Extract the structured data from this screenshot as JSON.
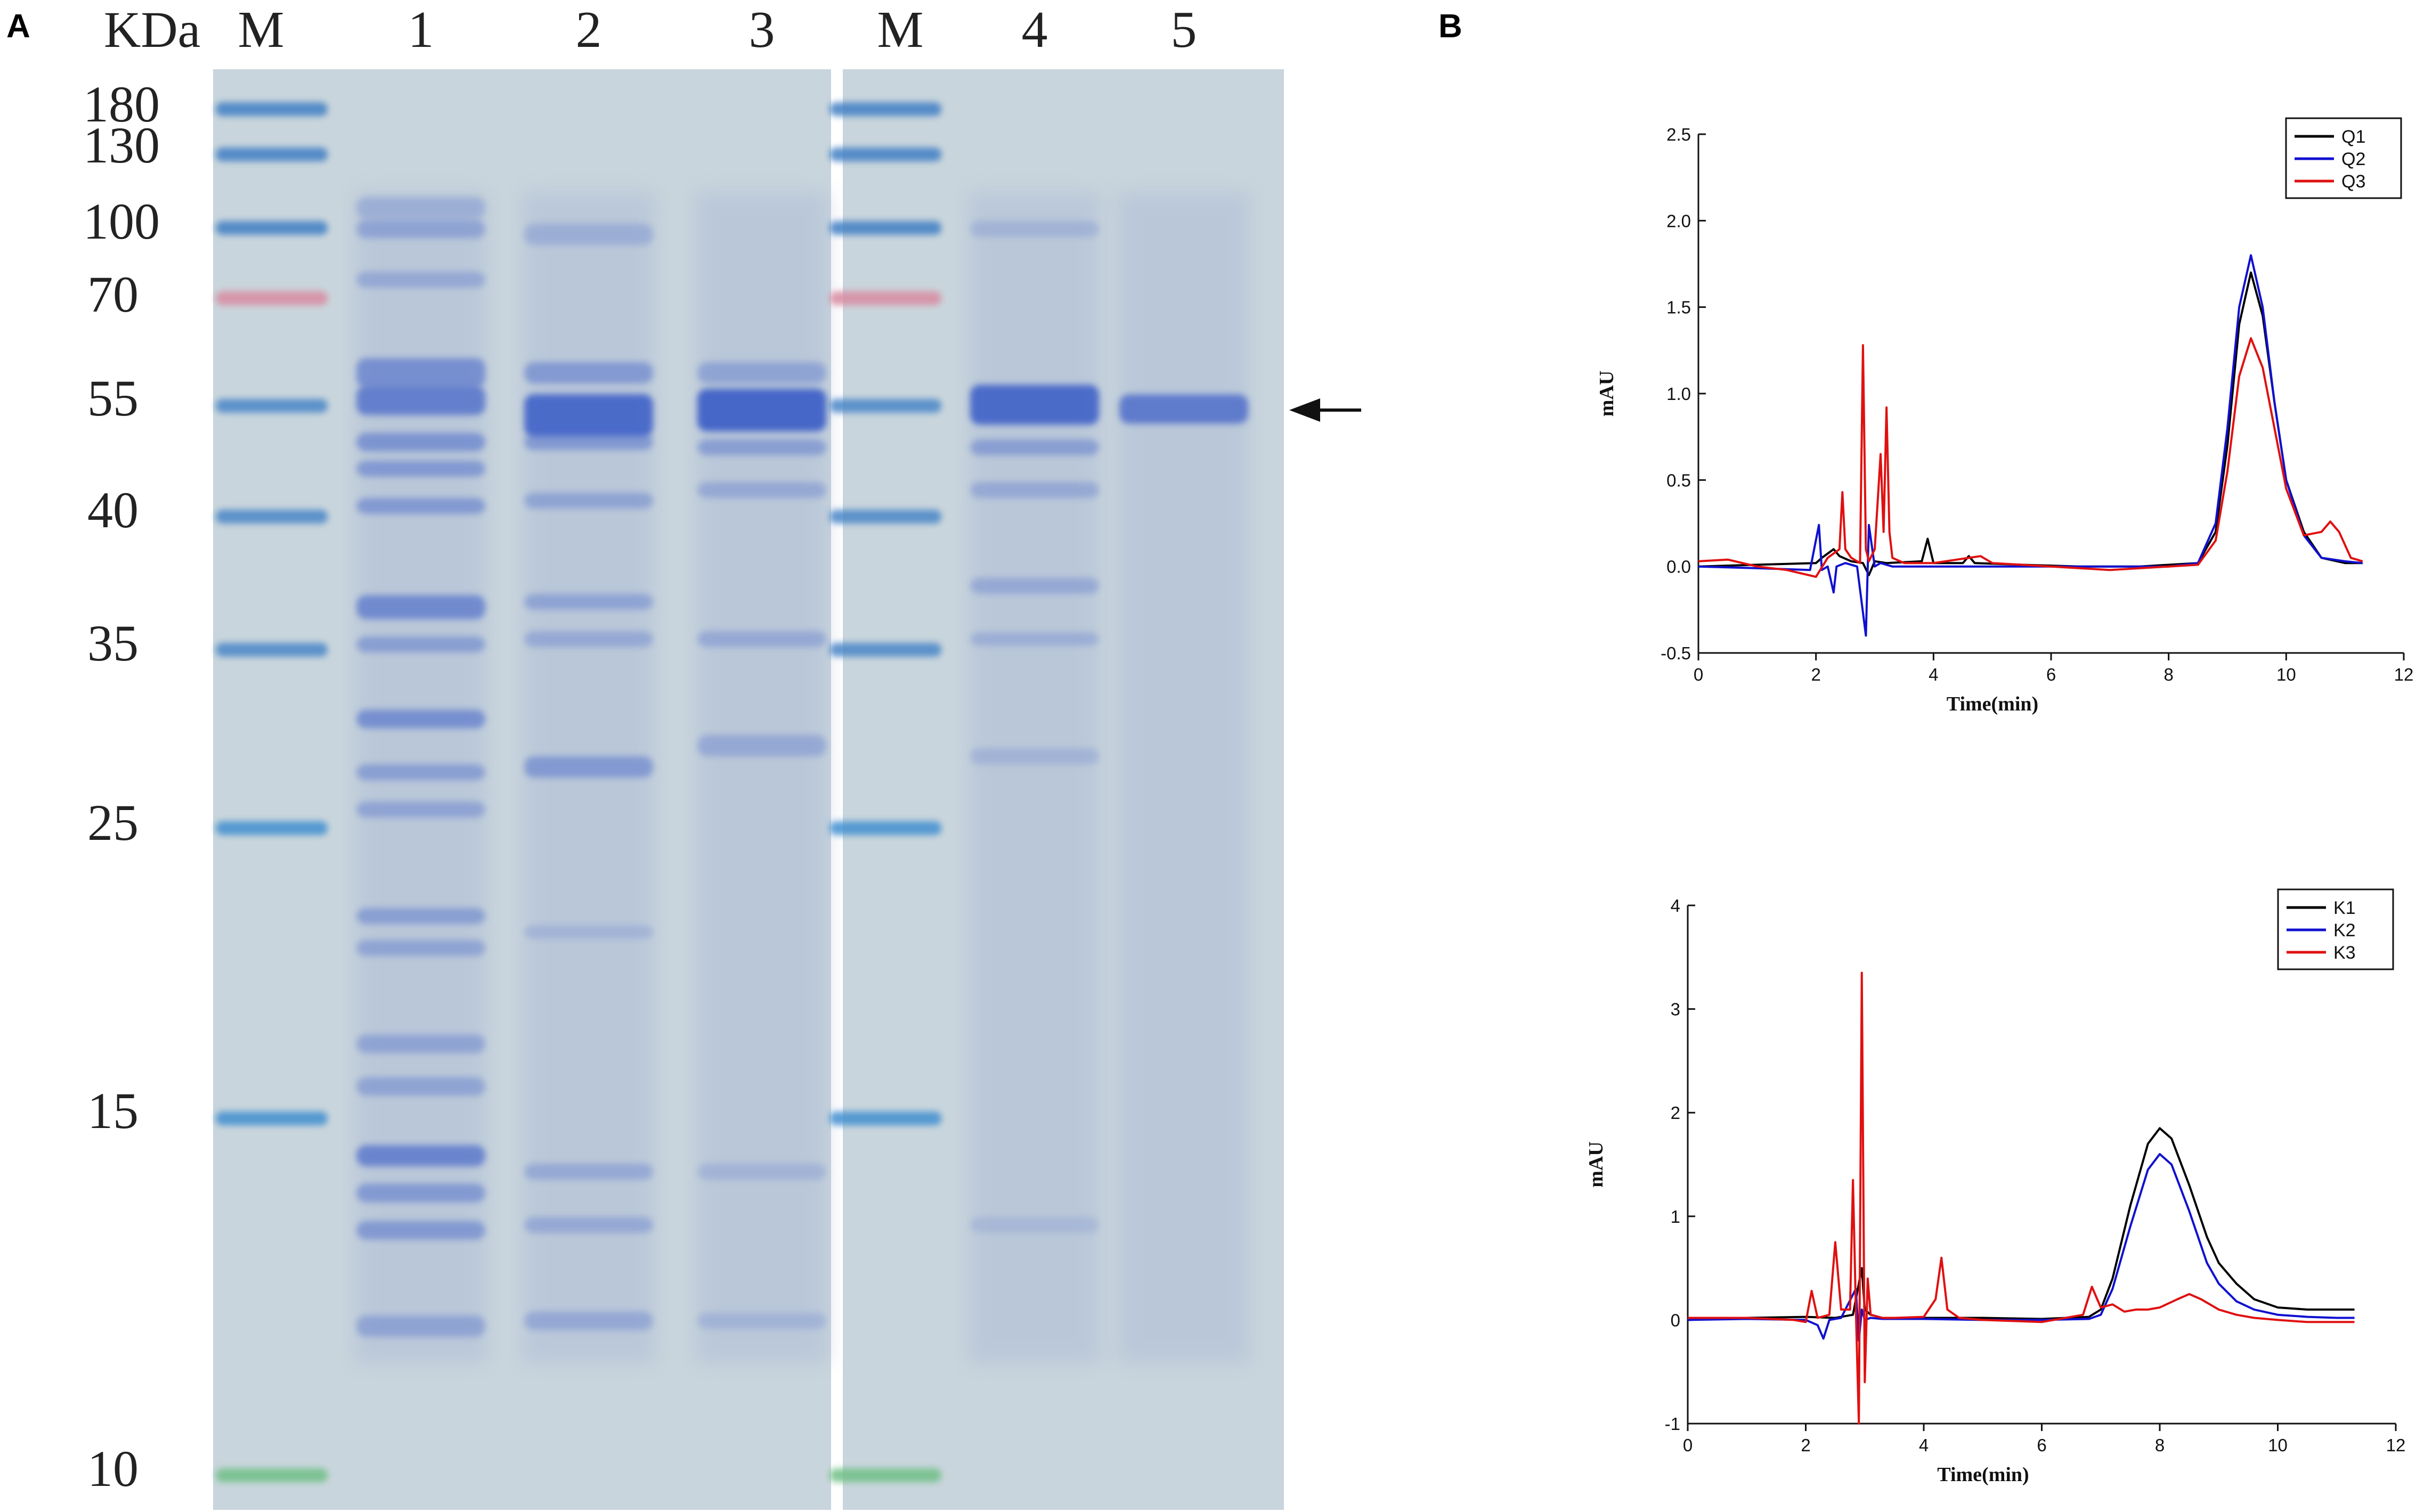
{
  "panel_a": {
    "letter": "A",
    "unit_label": "KDa",
    "lane_labels": [
      "M",
      "1",
      "2",
      "3",
      "M",
      "4",
      "5"
    ],
    "markers": [
      "180",
      "130",
      "100",
      "70",
      "55",
      "40",
      "35",
      "25",
      "15",
      "10"
    ],
    "marker_colors": [
      "#3f7fc4",
      "#3f7fc4",
      "#3f7fc4",
      "#d98aa0",
      "#4a86c8",
      "#4a86c8",
      "#4a86c8",
      "#3f8fd0",
      "#3f8fd0",
      "#6fbf86"
    ],
    "gel_background": "#c9d5dc",
    "band_color": "#3f62c8",
    "arrow_icon": "left-arrow-icon"
  },
  "panel_b": {
    "letter": "B"
  },
  "chart_data": [
    {
      "type": "line",
      "title": "",
      "xlabel": "Time(min)",
      "ylabel": "mAU",
      "xlim": [
        0,
        12
      ],
      "ylim": [
        -0.5,
        2.5
      ],
      "xticks": [
        "0",
        "2",
        "4",
        "6",
        "8",
        "10",
        "12"
      ],
      "yticks": [
        "-0.5",
        "0.0",
        "0.5",
        "1.0",
        "1.5",
        "2.0",
        "2.5"
      ],
      "legend_position": "top-right",
      "series": [
        {
          "name": "Q1",
          "color": "#000000",
          "x": [
            0,
            1.0,
            2.0,
            2.1,
            2.3,
            2.4,
            2.6,
            2.8,
            2.9,
            3.0,
            3.2,
            3.8,
            3.9,
            4.0,
            4.5,
            4.6,
            4.7,
            5.5,
            6.5,
            7.5,
            8.5,
            8.8,
            9.0,
            9.2,
            9.4,
            9.6,
            9.8,
            10.0,
            10.3,
            10.6,
            11.0,
            11.3
          ],
          "y": [
            0.0,
            0.01,
            0.02,
            0.05,
            0.1,
            0.06,
            0.03,
            0.02,
            -0.05,
            0.03,
            0.02,
            0.03,
            0.16,
            0.02,
            0.02,
            0.06,
            0.02,
            0.01,
            0.0,
            0.0,
            0.02,
            0.2,
            0.7,
            1.4,
            1.7,
            1.45,
            0.95,
            0.5,
            0.2,
            0.05,
            0.02,
            0.02
          ]
        },
        {
          "name": "Q2",
          "color": "#1010d0",
          "x": [
            0,
            1.0,
            1.9,
            2.05,
            2.1,
            2.2,
            2.3,
            2.35,
            2.5,
            2.7,
            2.85,
            2.9,
            3.0,
            3.1,
            3.3,
            4.0,
            5.0,
            6.0,
            7.0,
            8.0,
            8.5,
            8.8,
            9.0,
            9.2,
            9.4,
            9.6,
            9.8,
            10.0,
            10.3,
            10.6,
            11.0,
            11.3
          ],
          "y": [
            0.0,
            -0.01,
            -0.02,
            0.24,
            -0.02,
            0.0,
            -0.15,
            0.0,
            0.02,
            0.0,
            -0.4,
            0.24,
            0.0,
            0.02,
            0.0,
            0.0,
            0.0,
            0.0,
            0.0,
            0.0,
            0.02,
            0.25,
            0.8,
            1.5,
            1.8,
            1.5,
            0.95,
            0.5,
            0.18,
            0.05,
            0.03,
            0.02
          ]
        },
        {
          "name": "Q3",
          "color": "#e01010",
          "x": [
            0,
            0.5,
            1.0,
            1.5,
            2.0,
            2.2,
            2.4,
            2.45,
            2.5,
            2.6,
            2.75,
            2.8,
            2.85,
            2.9,
            3.0,
            3.1,
            3.15,
            3.2,
            3.25,
            3.3,
            3.5,
            4.0,
            4.8,
            5.0,
            6.0,
            7.0,
            8.0,
            8.5,
            8.8,
            9.0,
            9.2,
            9.4,
            9.6,
            9.8,
            10.0,
            10.3,
            10.6,
            10.75,
            10.9,
            11.1,
            11.3
          ],
          "y": [
            0.03,
            0.04,
            0.0,
            -0.02,
            -0.06,
            0.05,
            0.1,
            0.43,
            0.1,
            0.05,
            0.02,
            1.28,
            0.1,
            0.03,
            0.1,
            0.65,
            0.2,
            0.92,
            0.2,
            0.05,
            0.02,
            0.02,
            0.06,
            0.02,
            0.0,
            -0.02,
            0.0,
            0.01,
            0.15,
            0.55,
            1.1,
            1.32,
            1.15,
            0.8,
            0.45,
            0.18,
            0.2,
            0.26,
            0.2,
            0.05,
            0.03
          ]
        }
      ]
    },
    {
      "type": "line",
      "title": "",
      "xlabel": "Time(min)",
      "ylabel": "mAU",
      "xlim": [
        0,
        12
      ],
      "ylim": [
        -1,
        4
      ],
      "xticks": [
        "0",
        "2",
        "4",
        "6",
        "8",
        "10",
        "12"
      ],
      "yticks": [
        "-1",
        "0",
        "1",
        "2",
        "3",
        "4"
      ],
      "legend_position": "top-right",
      "series": [
        {
          "name": "K1",
          "color": "#000000",
          "x": [
            0,
            1.0,
            2.0,
            2.5,
            2.8,
            2.95,
            3.0,
            3.1,
            3.3,
            4.0,
            5.0,
            6.0,
            6.8,
            7.0,
            7.2,
            7.5,
            7.8,
            8.0,
            8.2,
            8.5,
            8.8,
            9.0,
            9.3,
            9.6,
            10.0,
            10.5,
            11.0,
            11.3
          ],
          "y": [
            0.0,
            0.02,
            0.03,
            0.02,
            0.05,
            0.5,
            0.1,
            0.05,
            0.02,
            0.02,
            0.02,
            0.01,
            0.03,
            0.1,
            0.4,
            1.1,
            1.7,
            1.85,
            1.75,
            1.3,
            0.8,
            0.55,
            0.35,
            0.2,
            0.12,
            0.1,
            0.1,
            0.1
          ]
        },
        {
          "name": "K2",
          "color": "#1010d0",
          "x": [
            0,
            1.0,
            2.0,
            2.2,
            2.3,
            2.4,
            2.6,
            2.85,
            2.9,
            2.95,
            3.0,
            3.1,
            3.3,
            4.0,
            5.0,
            6.0,
            6.8,
            7.0,
            7.2,
            7.5,
            7.8,
            8.0,
            8.2,
            8.5,
            8.8,
            9.0,
            9.3,
            9.6,
            10.0,
            10.5,
            11.0,
            11.3
          ],
          "y": [
            0.0,
            0.01,
            0.0,
            -0.05,
            -0.18,
            0.0,
            0.02,
            0.3,
            -0.2,
            0.1,
            0.0,
            0.02,
            0.01,
            0.01,
            0.0,
            0.0,
            0.01,
            0.05,
            0.3,
            0.9,
            1.45,
            1.6,
            1.5,
            1.05,
            0.55,
            0.35,
            0.18,
            0.1,
            0.05,
            0.03,
            0.02,
            0.02
          ]
        },
        {
          "name": "K3",
          "color": "#e01010",
          "x": [
            0,
            1.0,
            1.8,
            2.0,
            2.1,
            2.2,
            2.4,
            2.5,
            2.6,
            2.75,
            2.8,
            2.85,
            2.9,
            2.95,
            3.0,
            3.05,
            3.1,
            3.3,
            3.5,
            4.0,
            4.2,
            4.3,
            4.4,
            4.6,
            5.0,
            6.0,
            6.7,
            6.85,
            7.0,
            7.2,
            7.4,
            7.6,
            7.8,
            8.0,
            8.3,
            8.5,
            8.7,
            9.0,
            9.3,
            9.6,
            10.0,
            10.5,
            11.0,
            11.3
          ],
          "y": [
            0.02,
            0.02,
            0.0,
            -0.02,
            0.28,
            0.02,
            0.05,
            0.75,
            0.1,
            0.1,
            1.35,
            0.1,
            -1.0,
            3.35,
            -0.6,
            0.4,
            0.05,
            0.02,
            0.02,
            0.03,
            0.2,
            0.6,
            0.1,
            0.02,
            0.0,
            -0.02,
            0.05,
            0.32,
            0.12,
            0.15,
            0.08,
            0.1,
            0.1,
            0.12,
            0.2,
            0.25,
            0.2,
            0.1,
            0.05,
            0.02,
            0.0,
            -0.02,
            -0.02,
            -0.02
          ]
        }
      ]
    }
  ]
}
